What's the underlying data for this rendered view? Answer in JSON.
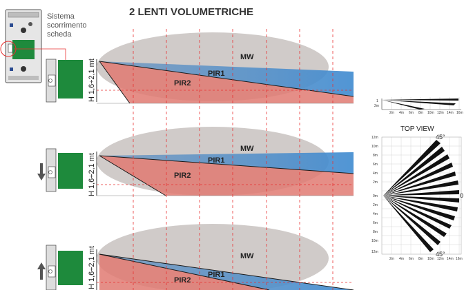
{
  "title": "2 LENTI VOLUMETRICHE",
  "board_caption": [
    "Sistema",
    "scorrimento",
    "scheda"
  ],
  "panels": [
    {
      "height_label": "H 1,6÷2,1 mt",
      "beams": {
        "mw": "MW",
        "pir1": "PIR1",
        "pir2": "PIR2"
      },
      "arrow": "none"
    },
    {
      "height_label": "H 1,6÷2,1 mt",
      "beams": {
        "mw": "MW",
        "pir1": "PIR1",
        "pir2": "PIR2"
      },
      "arrow": "down"
    },
    {
      "height_label": "H 1,6÷2,1 mt",
      "beams": {
        "mw": "MW",
        "pir1": "PIR1",
        "pir2": "PIR2"
      },
      "arrow": "up"
    }
  ],
  "side_view": {
    "y_ticks": [
      "1",
      "2m"
    ],
    "x_ticks": [
      "2m",
      "4m",
      "6m",
      "8m",
      "10m",
      "12m",
      "14m",
      "16m"
    ]
  },
  "top_view": {
    "title": "TOP VIEW",
    "y_ticks": [
      "12m",
      "10m",
      "8m",
      "6m",
      "4m",
      "2m",
      "0m",
      "2m",
      "4m",
      "6m",
      "8m",
      "10m",
      "12m"
    ],
    "x_ticks": [
      "2m",
      "4m",
      "6m",
      "8m",
      "10m",
      "12m",
      "14m",
      "16m"
    ],
    "angle_top": "45°",
    "angle_bottom": "45°",
    "angle_right": "0"
  },
  "colors": {
    "mw": "#c8c2bf",
    "pir1": "#4a86c6",
    "pir2": "#e07a72",
    "board": "#1e8a3c",
    "guide": "#e83030"
  }
}
